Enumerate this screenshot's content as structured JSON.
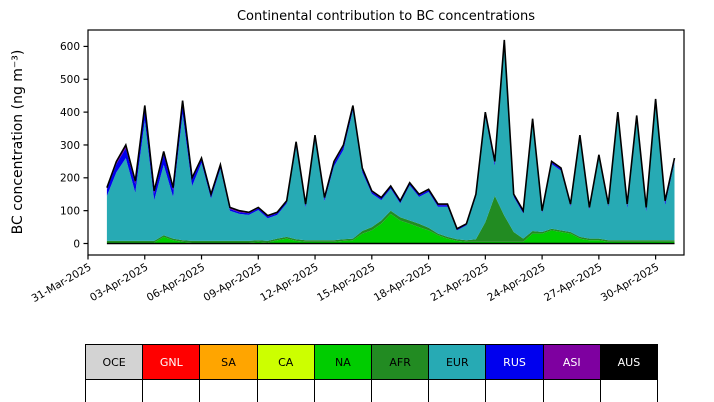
{
  "chart_data": {
    "type": "area",
    "title": "Continental contribution to BC concentrations",
    "xlabel": "",
    "ylabel": "BC concentration (ng m⁻³)",
    "ylim": [
      -35,
      650
    ],
    "yticks": [
      0,
      100,
      200,
      300,
      400,
      500,
      600
    ],
    "xlim": [
      0,
      31.5
    ],
    "x_unit": "days since 31-Mar-2025",
    "xticks": [
      0,
      3,
      6,
      9,
      12,
      15,
      18,
      21,
      24,
      27,
      30
    ],
    "xtick_labels": [
      "31-Mar-2025",
      "03-Apr-2025",
      "06-Apr-2025",
      "09-Apr-2025",
      "12-Apr-2025",
      "15-Apr-2025",
      "18-Apr-2025",
      "21-Apr-2025",
      "24-Apr-2025",
      "27-Apr-2025",
      "30-Apr-2025"
    ],
    "legend_position": "bottom",
    "grid": false,
    "total_line_color": "#000000",
    "x": [
      1,
      1.5,
      2,
      2.5,
      3,
      3.5,
      4,
      4.5,
      5,
      5.5,
      6,
      6.5,
      7,
      7.5,
      8,
      8.5,
      9,
      9.5,
      10,
      10.5,
      11,
      11.5,
      12,
      12.5,
      13,
      13.5,
      14,
      14.5,
      15,
      15.5,
      16,
      16.5,
      17,
      17.5,
      18,
      18.5,
      19,
      19.5,
      20,
      20.5,
      21,
      21.5,
      22,
      22.5,
      23,
      23.5,
      24,
      24.5,
      25,
      25.5,
      26,
      26.5,
      27,
      27.5,
      28,
      28.5,
      29,
      29.5,
      30,
      30.5,
      31
    ],
    "series": [
      {
        "name": "OCE",
        "color": "#d3d3d3",
        "text_color": "#000000",
        "constant": 0
      },
      {
        "name": "GNL",
        "color": "#ff0000",
        "text_color": "#ffffff",
        "constant": 0
      },
      {
        "name": "SA",
        "color": "#ffa500",
        "text_color": "#000000",
        "constant": 0
      },
      {
        "name": "CA",
        "color": "#ccff00",
        "text_color": "#000000",
        "constant": 0
      },
      {
        "name": "NA",
        "color": "#00cc00",
        "text_color": "#000000",
        "values": [
          3,
          3,
          3,
          3,
          3,
          3,
          20,
          10,
          5,
          3,
          3,
          3,
          3,
          3,
          3,
          3,
          5,
          3,
          10,
          15,
          8,
          5,
          5,
          5,
          5,
          8,
          10,
          30,
          40,
          60,
          90,
          70,
          60,
          50,
          40,
          25,
          15,
          8,
          5,
          5,
          5,
          5,
          5,
          5,
          5,
          30,
          30,
          40,
          35,
          30,
          15,
          10,
          10,
          5,
          5,
          5,
          5,
          5,
          5,
          5,
          5
        ]
      },
      {
        "name": "AFR",
        "color": "#228b22",
        "text_color": "#000000",
        "values": [
          5,
          5,
          5,
          5,
          5,
          5,
          5,
          5,
          5,
          5,
          5,
          5,
          5,
          5,
          5,
          5,
          5,
          5,
          5,
          5,
          5,
          5,
          5,
          5,
          5,
          5,
          5,
          8,
          10,
          10,
          10,
          10,
          10,
          10,
          8,
          5,
          5,
          5,
          5,
          8,
          60,
          140,
          80,
          30,
          10,
          8,
          5,
          5,
          5,
          5,
          5,
          5,
          5,
          5,
          5,
          5,
          5,
          5,
          5,
          5,
          5
        ]
      },
      {
        "name": "EUR",
        "color": "#27aab4",
        "text_color": "#000000",
        "values": [
          137,
          209,
          252,
          147,
          367,
          124,
          215,
          127,
          385,
          167,
          237,
          129,
          219,
          92,
          82,
          79,
          92,
          69,
          72,
          102,
          282,
          99,
          305,
          119,
          225,
          272,
          390,
          179,
          102,
          62,
          67,
          42,
          107,
          82,
          109,
          82,
          92,
          27,
          45,
          129,
          322,
          92,
          522,
          107,
          77,
          334,
          57,
          197,
          182,
          77,
          302,
          87,
          247,
          102,
          377,
          97,
          365,
          87,
          415,
          107,
          237
        ]
      },
      {
        "name": "RUS",
        "color": "#0000ee",
        "text_color": "#ffffff",
        "values": [
          20,
          25,
          30,
          25,
          35,
          20,
          30,
          20,
          30,
          20,
          10,
          8,
          8,
          5,
          5,
          5,
          5,
          5,
          5,
          5,
          10,
          8,
          10,
          8,
          10,
          10,
          10,
          8,
          5,
          5,
          5,
          5,
          5,
          5,
          5,
          5,
          5,
          3,
          3,
          5,
          8,
          8,
          8,
          5,
          5,
          5,
          5,
          5,
          5,
          5,
          5,
          5,
          5,
          5,
          10,
          10,
          12,
          10,
          12,
          10,
          10
        ]
      },
      {
        "name": "ASI",
        "color": "#7e00a0",
        "text_color": "#ffffff",
        "values": [
          5,
          8,
          10,
          10,
          10,
          8,
          10,
          8,
          10,
          5,
          5,
          5,
          5,
          5,
          5,
          3,
          3,
          3,
          3,
          3,
          5,
          3,
          5,
          3,
          5,
          5,
          5,
          5,
          3,
          3,
          3,
          3,
          3,
          3,
          3,
          3,
          3,
          2,
          2,
          3,
          5,
          5,
          5,
          3,
          3,
          3,
          3,
          3,
          3,
          3,
          3,
          3,
          3,
          3,
          3,
          3,
          3,
          3,
          3,
          3,
          3
        ]
      },
      {
        "name": "AUS",
        "color": "#000000",
        "text_color": "#ffffff",
        "constant": 0
      }
    ]
  }
}
